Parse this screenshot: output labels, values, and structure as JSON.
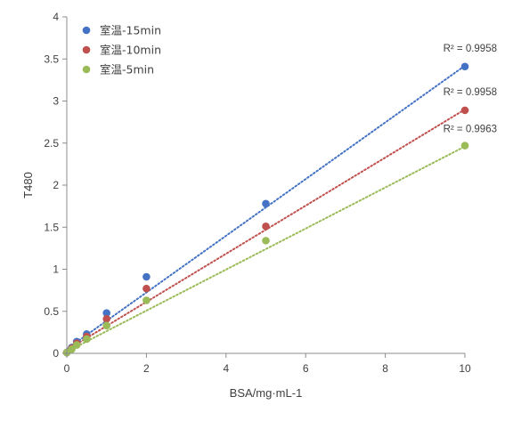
{
  "chart_data": {
    "type": "scatter",
    "xlabel": "BSA/mg·mL-1",
    "ylabel": "T480",
    "xlim": [
      0,
      10
    ],
    "ylim": [
      0,
      4
    ],
    "xticks": [
      0,
      2,
      4,
      6,
      8,
      10
    ],
    "yticks": [
      0,
      0.5,
      1,
      1.5,
      2,
      2.5,
      3,
      3.5,
      4
    ],
    "xtick_labels": [
      "0",
      "2",
      "4",
      "6",
      "8",
      "10"
    ],
    "ytick_labels": [
      "0",
      "0.5",
      "1",
      "1.5",
      "2",
      "2.5",
      "3",
      "3.5",
      "4"
    ],
    "grid": false,
    "legend_position": "top-left",
    "series": [
      {
        "name": "室温-15min",
        "color": "#4472C4",
        "x": [
          0,
          0.125,
          0.25,
          0.5,
          1,
          2,
          5,
          10
        ],
        "y": [
          0.01,
          0.07,
          0.14,
          0.23,
          0.48,
          0.91,
          1.78,
          3.41
        ],
        "trendline": {
          "type": "linear",
          "style": "dotted",
          "x": [
            0,
            10
          ],
          "y": [
            0.05,
            3.42
          ]
        },
        "r2_label": "R² = 0.9958"
      },
      {
        "name": "室温-10min",
        "color": "#C0504D",
        "x": [
          0,
          0.125,
          0.25,
          0.5,
          1,
          2,
          5,
          10
        ],
        "y": [
          0.01,
          0.06,
          0.12,
          0.2,
          0.41,
          0.77,
          1.51,
          2.89
        ],
        "trendline": {
          "type": "linear",
          "style": "dotted",
          "x": [
            0,
            10
          ],
          "y": [
            0.04,
            2.9
          ]
        },
        "r2_label": "R² = 0.9958"
      },
      {
        "name": "室温-5min",
        "color": "#9BBB59",
        "x": [
          0,
          0.125,
          0.25,
          0.5,
          1,
          2,
          5,
          10
        ],
        "y": [
          0.01,
          0.05,
          0.1,
          0.17,
          0.33,
          0.63,
          1.34,
          2.47
        ],
        "trendline": {
          "type": "linear",
          "style": "dotted",
          "x": [
            0,
            10
          ],
          "y": [
            0.02,
            2.46
          ]
        },
        "r2_label": "R² = 0.9963"
      }
    ]
  }
}
